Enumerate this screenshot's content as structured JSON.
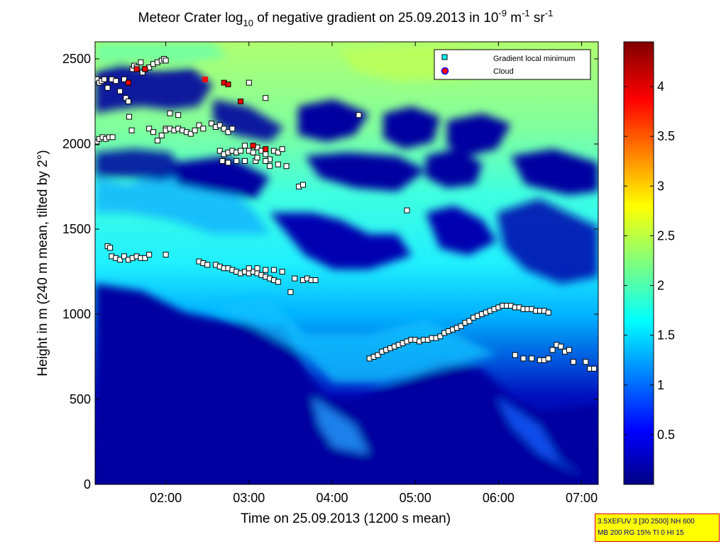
{
  "chart_data": {
    "type": "heatmap",
    "title": {
      "prefix": "Meteor Crater log",
      "sub": "10",
      "mid": " of negative gradient on 25.09.2013 in 10",
      "sup1": "-9",
      "unit1": " m",
      "sup2": "-1",
      "unit2": " sr",
      "sup3": "-1"
    },
    "xlabel": "Time on 25.09.2013 (1200 s mean)",
    "ylabel": "Height in m (240 m mean, tilted by 2°)",
    "xlim_hours": [
      1.15,
      7.2
    ],
    "ylim": [
      0,
      2600
    ],
    "x_ticks": [
      "02:00",
      "03:00",
      "04:00",
      "05:00",
      "06:00",
      "07:00"
    ],
    "y_ticks": [
      "0",
      "500",
      "1000",
      "1500",
      "2000",
      "2500"
    ],
    "colorbar": {
      "range": [
        0,
        4.45
      ],
      "ticks": [
        "0.5",
        "1",
        "1.5",
        "2",
        "2.5",
        "3",
        "3.5",
        "4"
      ]
    },
    "legend": {
      "placement": "top-right",
      "entries": [
        {
          "label": "Gradient local minimum",
          "marker": "square",
          "color": "#00ffff"
        },
        {
          "label": "Cloud",
          "marker": "circle",
          "color": "#ff0000"
        }
      ]
    },
    "series": [
      {
        "name": "Gradient local minimum",
        "points": [
          [
            1.17,
            2380
          ],
          [
            1.2,
            2360
          ],
          [
            1.23,
            2370
          ],
          [
            1.26,
            2380
          ],
          [
            1.3,
            2330
          ],
          [
            1.35,
            2380
          ],
          [
            1.4,
            2370
          ],
          [
            1.45,
            2310
          ],
          [
            1.5,
            2380
          ],
          [
            1.52,
            2270
          ],
          [
            1.55,
            2250
          ],
          [
            1.56,
            2160
          ],
          [
            1.6,
            2440
          ],
          [
            1.62,
            2460
          ],
          [
            1.65,
            2450
          ],
          [
            1.7,
            2480
          ],
          [
            1.72,
            2420
          ],
          [
            1.75,
            2440
          ],
          [
            1.8,
            2450
          ],
          [
            1.85,
            2470
          ],
          [
            1.9,
            2480
          ],
          [
            1.95,
            2490
          ],
          [
            1.98,
            2500
          ],
          [
            2.0,
            2490
          ],
          [
            1.17,
            2010
          ],
          [
            1.2,
            2030
          ],
          [
            1.24,
            2040
          ],
          [
            1.28,
            2030
          ],
          [
            1.32,
            2040
          ],
          [
            1.36,
            2040
          ],
          [
            1.59,
            2080
          ],
          [
            1.8,
            2090
          ],
          [
            1.85,
            2070
          ],
          [
            1.9,
            2020
          ],
          [
            1.95,
            2050
          ],
          [
            2.0,
            2090
          ],
          [
            2.05,
            2180
          ],
          [
            2.15,
            2170
          ],
          [
            2.0,
            2080
          ],
          [
            2.05,
            2090
          ],
          [
            2.1,
            2080
          ],
          [
            2.15,
            2090
          ],
          [
            2.2,
            2080
          ],
          [
            2.25,
            2070
          ],
          [
            2.3,
            2060
          ],
          [
            2.35,
            2080
          ],
          [
            2.4,
            2110
          ],
          [
            2.45,
            2090
          ],
          [
            2.55,
            2120
          ],
          [
            2.6,
            2100
          ],
          [
            2.65,
            2110
          ],
          [
            2.7,
            2090
          ],
          [
            2.75,
            2070
          ],
          [
            2.8,
            2090
          ],
          [
            2.65,
            1960
          ],
          [
            2.7,
            1940
          ],
          [
            2.75,
            1950
          ],
          [
            2.8,
            1960
          ],
          [
            2.85,
            1950
          ],
          [
            2.9,
            1960
          ],
          [
            2.95,
            1990
          ],
          [
            3.0,
            1960
          ],
          [
            3.05,
            1950
          ],
          [
            3.1,
            1980
          ],
          [
            3.15,
            1960
          ],
          [
            3.2,
            1940
          ],
          [
            3.25,
            1910
          ],
          [
            3.3,
            1960
          ],
          [
            3.35,
            1950
          ],
          [
            3.4,
            1970
          ],
          [
            2.68,
            1900
          ],
          [
            2.75,
            1890
          ],
          [
            2.85,
            1900
          ],
          [
            2.95,
            1900
          ],
          [
            3.08,
            1900
          ],
          [
            3.1,
            1920
          ],
          [
            3.2,
            1900
          ],
          [
            3.25,
            1870
          ],
          [
            3.35,
            1880
          ],
          [
            3.45,
            1870
          ],
          [
            3.6,
            1750
          ],
          [
            3.65,
            1760
          ],
          [
            3.2,
            2270
          ],
          [
            3.0,
            2360
          ],
          [
            1.3,
            1400
          ],
          [
            1.33,
            1390
          ],
          [
            1.35,
            1340
          ],
          [
            1.4,
            1330
          ],
          [
            1.45,
            1320
          ],
          [
            1.5,
            1340
          ],
          [
            1.55,
            1320
          ],
          [
            1.6,
            1330
          ],
          [
            1.65,
            1340
          ],
          [
            1.7,
            1330
          ],
          [
            1.75,
            1330
          ],
          [
            1.8,
            1350
          ],
          [
            2.0,
            1350
          ],
          [
            2.4,
            1310
          ],
          [
            2.45,
            1300
          ],
          [
            2.5,
            1290
          ],
          [
            2.6,
            1290
          ],
          [
            2.65,
            1280
          ],
          [
            2.7,
            1270
          ],
          [
            2.75,
            1270
          ],
          [
            2.8,
            1260
          ],
          [
            2.85,
            1250
          ],
          [
            2.9,
            1240
          ],
          [
            2.95,
            1250
          ],
          [
            3.0,
            1240
          ],
          [
            3.05,
            1250
          ],
          [
            3.1,
            1240
          ],
          [
            3.15,
            1230
          ],
          [
            3.2,
            1220
          ],
          [
            3.25,
            1210
          ],
          [
            3.3,
            1200
          ],
          [
            3.35,
            1190
          ],
          [
            3.0,
            1270
          ],
          [
            3.1,
            1270
          ],
          [
            3.2,
            1260
          ],
          [
            3.3,
            1260
          ],
          [
            3.4,
            1250
          ],
          [
            3.55,
            1210
          ],
          [
            3.65,
            1200
          ],
          [
            3.7,
            1210
          ],
          [
            3.75,
            1200
          ],
          [
            3.8,
            1200
          ],
          [
            3.5,
            1130
          ],
          [
            4.9,
            1610
          ],
          [
            4.32,
            2170
          ],
          [
            4.45,
            740
          ],
          [
            4.5,
            750
          ],
          [
            4.55,
            760
          ],
          [
            4.6,
            780
          ],
          [
            4.65,
            790
          ],
          [
            4.7,
            800
          ],
          [
            4.75,
            810
          ],
          [
            4.8,
            820
          ],
          [
            4.85,
            830
          ],
          [
            4.9,
            840
          ],
          [
            4.95,
            850
          ],
          [
            5.0,
            850
          ],
          [
            5.05,
            840
          ],
          [
            5.1,
            850
          ],
          [
            5.15,
            850
          ],
          [
            5.2,
            860
          ],
          [
            5.25,
            860
          ],
          [
            5.3,
            870
          ],
          [
            5.35,
            890
          ],
          [
            5.4,
            900
          ],
          [
            5.45,
            910
          ],
          [
            5.5,
            920
          ],
          [
            5.55,
            930
          ],
          [
            5.6,
            950
          ],
          [
            5.65,
            960
          ],
          [
            5.7,
            980
          ],
          [
            5.75,
            990
          ],
          [
            5.8,
            1000
          ],
          [
            5.85,
            1010
          ],
          [
            5.9,
            1020
          ],
          [
            5.95,
            1030
          ],
          [
            6.0,
            1040
          ],
          [
            6.05,
            1050
          ],
          [
            6.1,
            1050
          ],
          [
            6.15,
            1050
          ],
          [
            6.2,
            1040
          ],
          [
            6.25,
            1040
          ],
          [
            6.3,
            1030
          ],
          [
            6.35,
            1030
          ],
          [
            6.4,
            1030
          ],
          [
            6.45,
            1020
          ],
          [
            6.5,
            1020
          ],
          [
            6.55,
            1020
          ],
          [
            6.6,
            1010
          ],
          [
            6.2,
            760
          ],
          [
            6.3,
            740
          ],
          [
            6.4,
            740
          ],
          [
            6.5,
            730
          ],
          [
            6.55,
            730
          ],
          [
            6.6,
            740
          ],
          [
            6.65,
            790
          ],
          [
            6.7,
            820
          ],
          [
            6.75,
            810
          ],
          [
            6.8,
            780
          ],
          [
            6.85,
            790
          ],
          [
            6.9,
            720
          ],
          [
            7.05,
            720
          ],
          [
            7.1,
            680
          ],
          [
            7.15,
            680
          ]
        ]
      },
      {
        "name": "Cloud",
        "points": [
          [
            1.55,
            2360
          ],
          [
            1.65,
            2440
          ],
          [
            1.75,
            2440
          ],
          [
            2.7,
            2360
          ],
          [
            2.75,
            2350
          ],
          [
            2.9,
            2250
          ],
          [
            3.05,
            1990
          ],
          [
            3.2,
            1970
          ]
        ]
      }
    ],
    "info_box": [
      "3.5XEFUV 3 [30 2500] NH 600",
      "MB 200 RG 15% TI 0 HI 15"
    ]
  }
}
